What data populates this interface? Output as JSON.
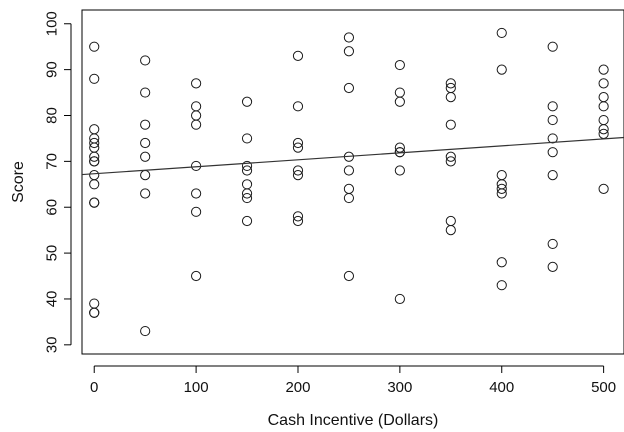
{
  "chart_data": {
    "type": "scatter",
    "title": "",
    "xlabel": "Cash Incentive (Dollars)",
    "ylabel": "Score",
    "xlim": [
      -12,
      520
    ],
    "ylim": [
      28,
      103
    ],
    "xticks": [
      0,
      100,
      200,
      300,
      400,
      500
    ],
    "yticks": [
      30,
      40,
      50,
      60,
      70,
      80,
      90,
      100
    ],
    "grid": false,
    "legend": "none",
    "marker": "open-circle",
    "colors": {
      "points": "#1a1a1a",
      "line": "#333333",
      "frame": "#000000"
    },
    "series": [
      {
        "points": [
          [
            0,
            95
          ],
          [
            0,
            88
          ],
          [
            0,
            77
          ],
          [
            0,
            75
          ],
          [
            0,
            74
          ],
          [
            0,
            73
          ],
          [
            0,
            71
          ],
          [
            0,
            70
          ],
          [
            0,
            70
          ],
          [
            0,
            67
          ],
          [
            0,
            65
          ],
          [
            0,
            61
          ],
          [
            0,
            61
          ],
          [
            0,
            39
          ],
          [
            0,
            37
          ],
          [
            0,
            37
          ],
          [
            50,
            92
          ],
          [
            50,
            85
          ],
          [
            50,
            78
          ],
          [
            50,
            74
          ],
          [
            50,
            71
          ],
          [
            50,
            67
          ],
          [
            50,
            63
          ],
          [
            50,
            33
          ],
          [
            100,
            87
          ],
          [
            100,
            82
          ],
          [
            100,
            80
          ],
          [
            100,
            78
          ],
          [
            100,
            69
          ],
          [
            100,
            63
          ],
          [
            100,
            59
          ],
          [
            100,
            45
          ],
          [
            150,
            83
          ],
          [
            150,
            75
          ],
          [
            150,
            69
          ],
          [
            150,
            68
          ],
          [
            150,
            65
          ],
          [
            150,
            63
          ],
          [
            150,
            62
          ],
          [
            150,
            57
          ],
          [
            200,
            93
          ],
          [
            200,
            82
          ],
          [
            200,
            74
          ],
          [
            200,
            73
          ],
          [
            200,
            68
          ],
          [
            200,
            67
          ],
          [
            200,
            58
          ],
          [
            200,
            57
          ],
          [
            250,
            97
          ],
          [
            250,
            94
          ],
          [
            250,
            86
          ],
          [
            250,
            71
          ],
          [
            250,
            68
          ],
          [
            250,
            64
          ],
          [
            250,
            62
          ],
          [
            250,
            45
          ],
          [
            300,
            91
          ],
          [
            300,
            85
          ],
          [
            300,
            83
          ],
          [
            300,
            73
          ],
          [
            300,
            72
          ],
          [
            300,
            72
          ],
          [
            300,
            68
          ],
          [
            300,
            40
          ],
          [
            350,
            87
          ],
          [
            350,
            86
          ],
          [
            350,
            84
          ],
          [
            350,
            78
          ],
          [
            350,
            71
          ],
          [
            350,
            70
          ],
          [
            350,
            57
          ],
          [
            350,
            55
          ],
          [
            400,
            98
          ],
          [
            400,
            90
          ],
          [
            400,
            67
          ],
          [
            400,
            65
          ],
          [
            400,
            64
          ],
          [
            400,
            63
          ],
          [
            400,
            48
          ],
          [
            400,
            43
          ],
          [
            450,
            95
          ],
          [
            450,
            82
          ],
          [
            450,
            79
          ],
          [
            450,
            75
          ],
          [
            450,
            72
          ],
          [
            450,
            67
          ],
          [
            450,
            52
          ],
          [
            450,
            47
          ],
          [
            500,
            90
          ],
          [
            500,
            87
          ],
          [
            500,
            84
          ],
          [
            500,
            82
          ],
          [
            500,
            79
          ],
          [
            500,
            77
          ],
          [
            500,
            76
          ],
          [
            500,
            64
          ]
        ]
      }
    ],
    "trendline": {
      "slope": 0.0152,
      "intercept": 67.3
    }
  }
}
